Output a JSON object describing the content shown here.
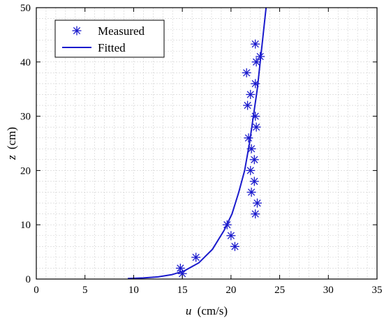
{
  "chart_data": {
    "type": "scatter",
    "title": "",
    "xlabel_var": "u",
    "xlabel_unit": "(cm/s)",
    "ylabel_var": "z",
    "ylabel_unit": "(cm)",
    "xlim": [
      0,
      35
    ],
    "ylim": [
      0,
      50
    ],
    "xticks": [
      0,
      5,
      10,
      15,
      20,
      25,
      30,
      35
    ],
    "yticks": [
      0,
      10,
      20,
      30,
      40,
      50
    ],
    "grid": true,
    "legend_position": "top-left",
    "colors": {
      "series": "#1a1acc",
      "grid": "#d0d0d0",
      "axis": "#000000"
    },
    "series": [
      {
        "name": "Measured",
        "style": "asterisk-markers",
        "points": [
          {
            "x": 14.8,
            "y": 2
          },
          {
            "x": 15.0,
            "y": 1
          },
          {
            "x": 16.4,
            "y": 4
          },
          {
            "x": 19.6,
            "y": 10
          },
          {
            "x": 20.0,
            "y": 8
          },
          {
            "x": 20.4,
            "y": 6
          },
          {
            "x": 22.5,
            "y": 12
          },
          {
            "x": 22.7,
            "y": 14
          },
          {
            "x": 22.1,
            "y": 16
          },
          {
            "x": 22.4,
            "y": 18
          },
          {
            "x": 22.0,
            "y": 20
          },
          {
            "x": 22.4,
            "y": 22
          },
          {
            "x": 22.1,
            "y": 24
          },
          {
            "x": 21.8,
            "y": 26
          },
          {
            "x": 22.6,
            "y": 28
          },
          {
            "x": 22.5,
            "y": 30
          },
          {
            "x": 21.7,
            "y": 32
          },
          {
            "x": 22.0,
            "y": 34
          },
          {
            "x": 22.5,
            "y": 36
          },
          {
            "x": 21.6,
            "y": 38
          },
          {
            "x": 22.6,
            "y": 40
          },
          {
            "x": 23.0,
            "y": 41
          },
          {
            "x": 22.5,
            "y": 43.3
          }
        ]
      },
      {
        "name": "Fitted",
        "style": "line",
        "points": [
          {
            "x": 9.4,
            "y": 0.1
          },
          {
            "x": 11.0,
            "y": 0.2
          },
          {
            "x": 12.5,
            "y": 0.4
          },
          {
            "x": 13.9,
            "y": 0.8
          },
          {
            "x": 15.2,
            "y": 1.5
          },
          {
            "x": 16.7,
            "y": 3
          },
          {
            "x": 18.1,
            "y": 5.5
          },
          {
            "x": 19.3,
            "y": 9
          },
          {
            "x": 20.1,
            "y": 12
          },
          {
            "x": 20.8,
            "y": 16
          },
          {
            "x": 21.4,
            "y": 20
          },
          {
            "x": 21.9,
            "y": 25
          },
          {
            "x": 22.3,
            "y": 30
          },
          {
            "x": 22.7,
            "y": 35
          },
          {
            "x": 23.0,
            "y": 40
          },
          {
            "x": 23.3,
            "y": 45
          },
          {
            "x": 23.6,
            "y": 50
          }
        ]
      }
    ]
  }
}
